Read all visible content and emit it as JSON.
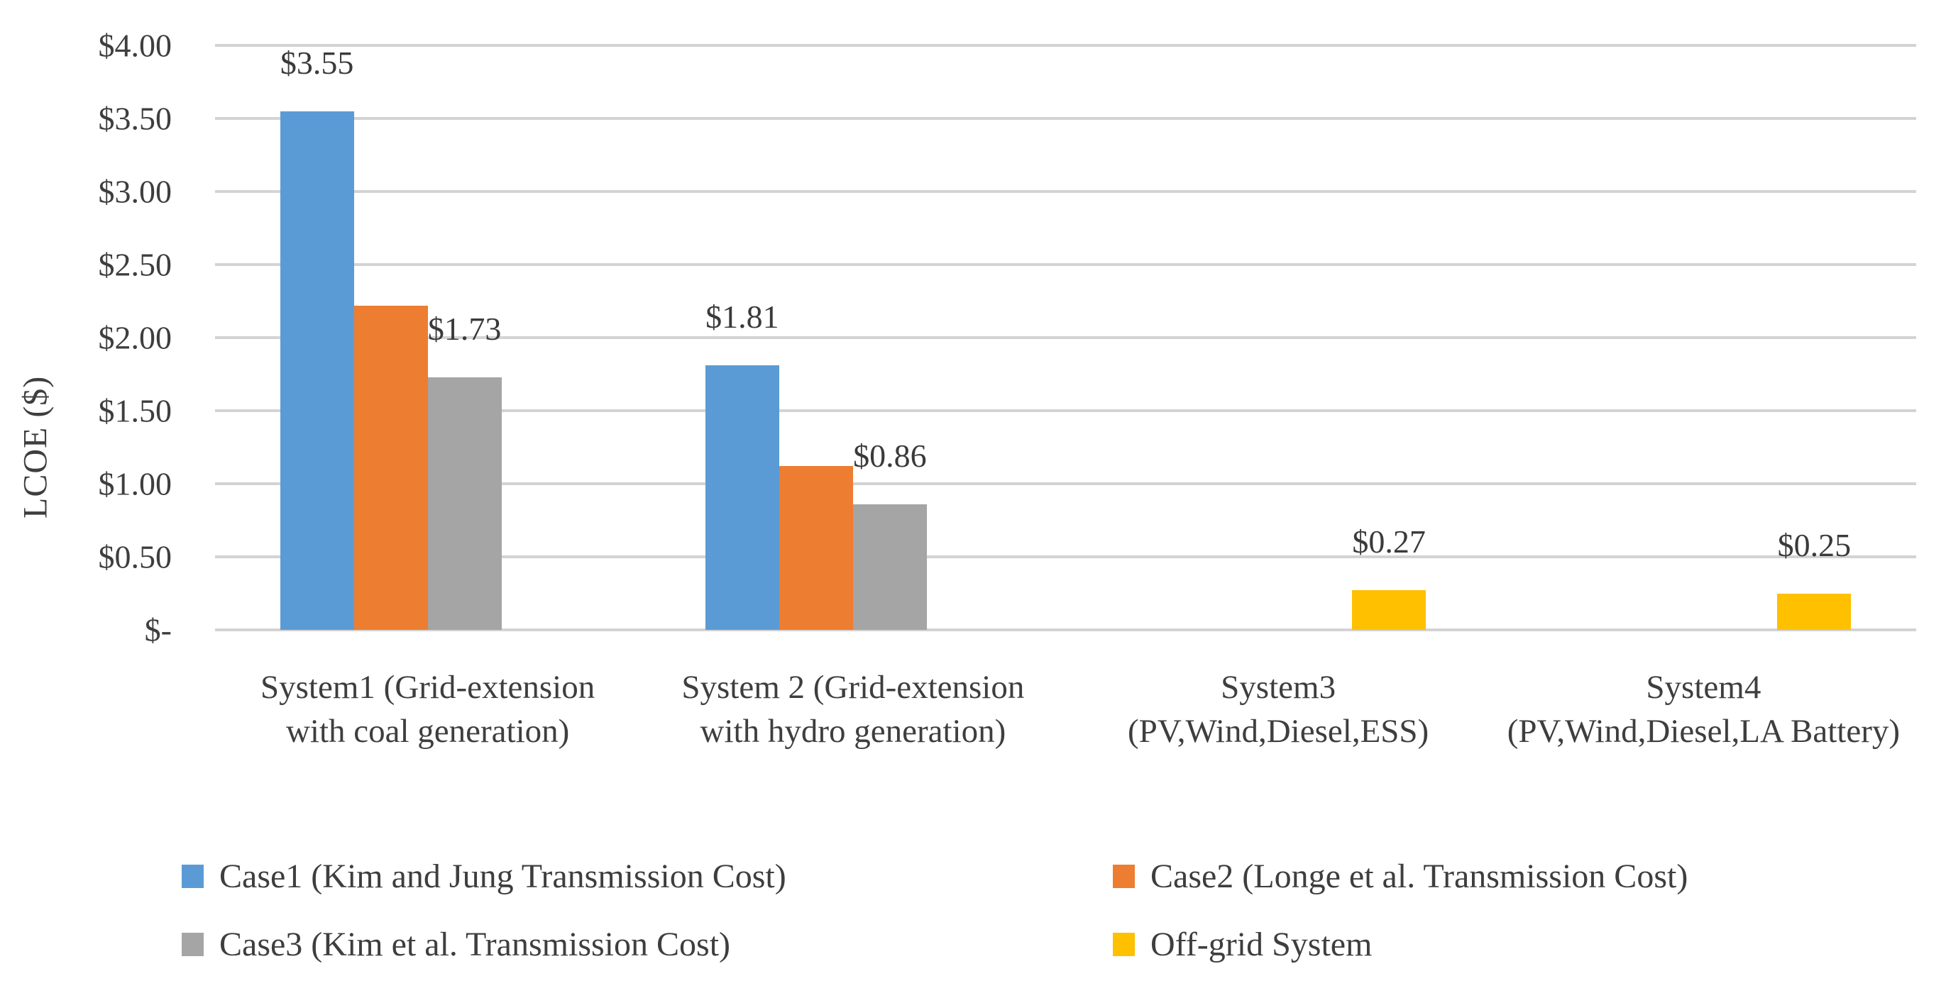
{
  "chart_data": {
    "type": "bar",
    "title": "",
    "xlabel": "",
    "ylabel": "LCOE ($)",
    "ylim": [
      0,
      4
    ],
    "ytick_step": 0.5,
    "yticks_top_to_bottom": [
      "$4.00",
      "$3.50",
      "$3.00",
      "$2.50",
      "$2.00",
      "$1.50",
      "$1.00",
      "$0.50",
      "$-"
    ],
    "grid": "horizontal",
    "legend_position": "bottom",
    "categories": [
      "System1 (Grid-extension with coal generation)",
      "System 2 (Grid-extension with hydro generation)",
      "System3 (PV,Wind,Diesel,ESS)",
      "System4 (PV,Wind,Diesel,LA Battery)"
    ],
    "series": [
      {
        "name": "Case1 (Kim and Jung Transmission Cost)",
        "color": "#5B9BD5",
        "values": [
          3.55,
          1.81,
          null,
          null
        ],
        "data_labels": [
          "$3.55",
          "$1.81",
          null,
          null
        ]
      },
      {
        "name": "Case2 (Longe et al. Transmission Cost)",
        "color": "#ED7D31",
        "values": [
          2.22,
          1.12,
          null,
          null
        ],
        "data_labels": [
          null,
          null,
          null,
          null
        ]
      },
      {
        "name": "Case3 (Kim et al. Transmission Cost)",
        "color": "#A5A5A5",
        "values": [
          1.73,
          0.86,
          null,
          null
        ],
        "data_labels": [
          "$1.73",
          "$0.86",
          null,
          null
        ]
      },
      {
        "name": "Off-grid System",
        "color": "#FFC000",
        "values": [
          null,
          null,
          0.27,
          0.25
        ],
        "data_labels": [
          null,
          null,
          "$0.27",
          "$0.25"
        ]
      }
    ],
    "legend": [
      {
        "label": "Case1 (Kim and Jung Transmission Cost)",
        "color": "#5B9BD5"
      },
      {
        "label": "Case2 (Longe et al. Transmission Cost)",
        "color": "#ED7D31"
      },
      {
        "label": "Case3 (Kim et al. Transmission Cost)",
        "color": "#A5A5A5"
      },
      {
        "label": "Off-grid System",
        "color": "#FFC000"
      }
    ],
    "colors": {
      "gridline": "#D3D3D3",
      "text": "#3E3E3E",
      "background": "#FFFFFF"
    }
  }
}
